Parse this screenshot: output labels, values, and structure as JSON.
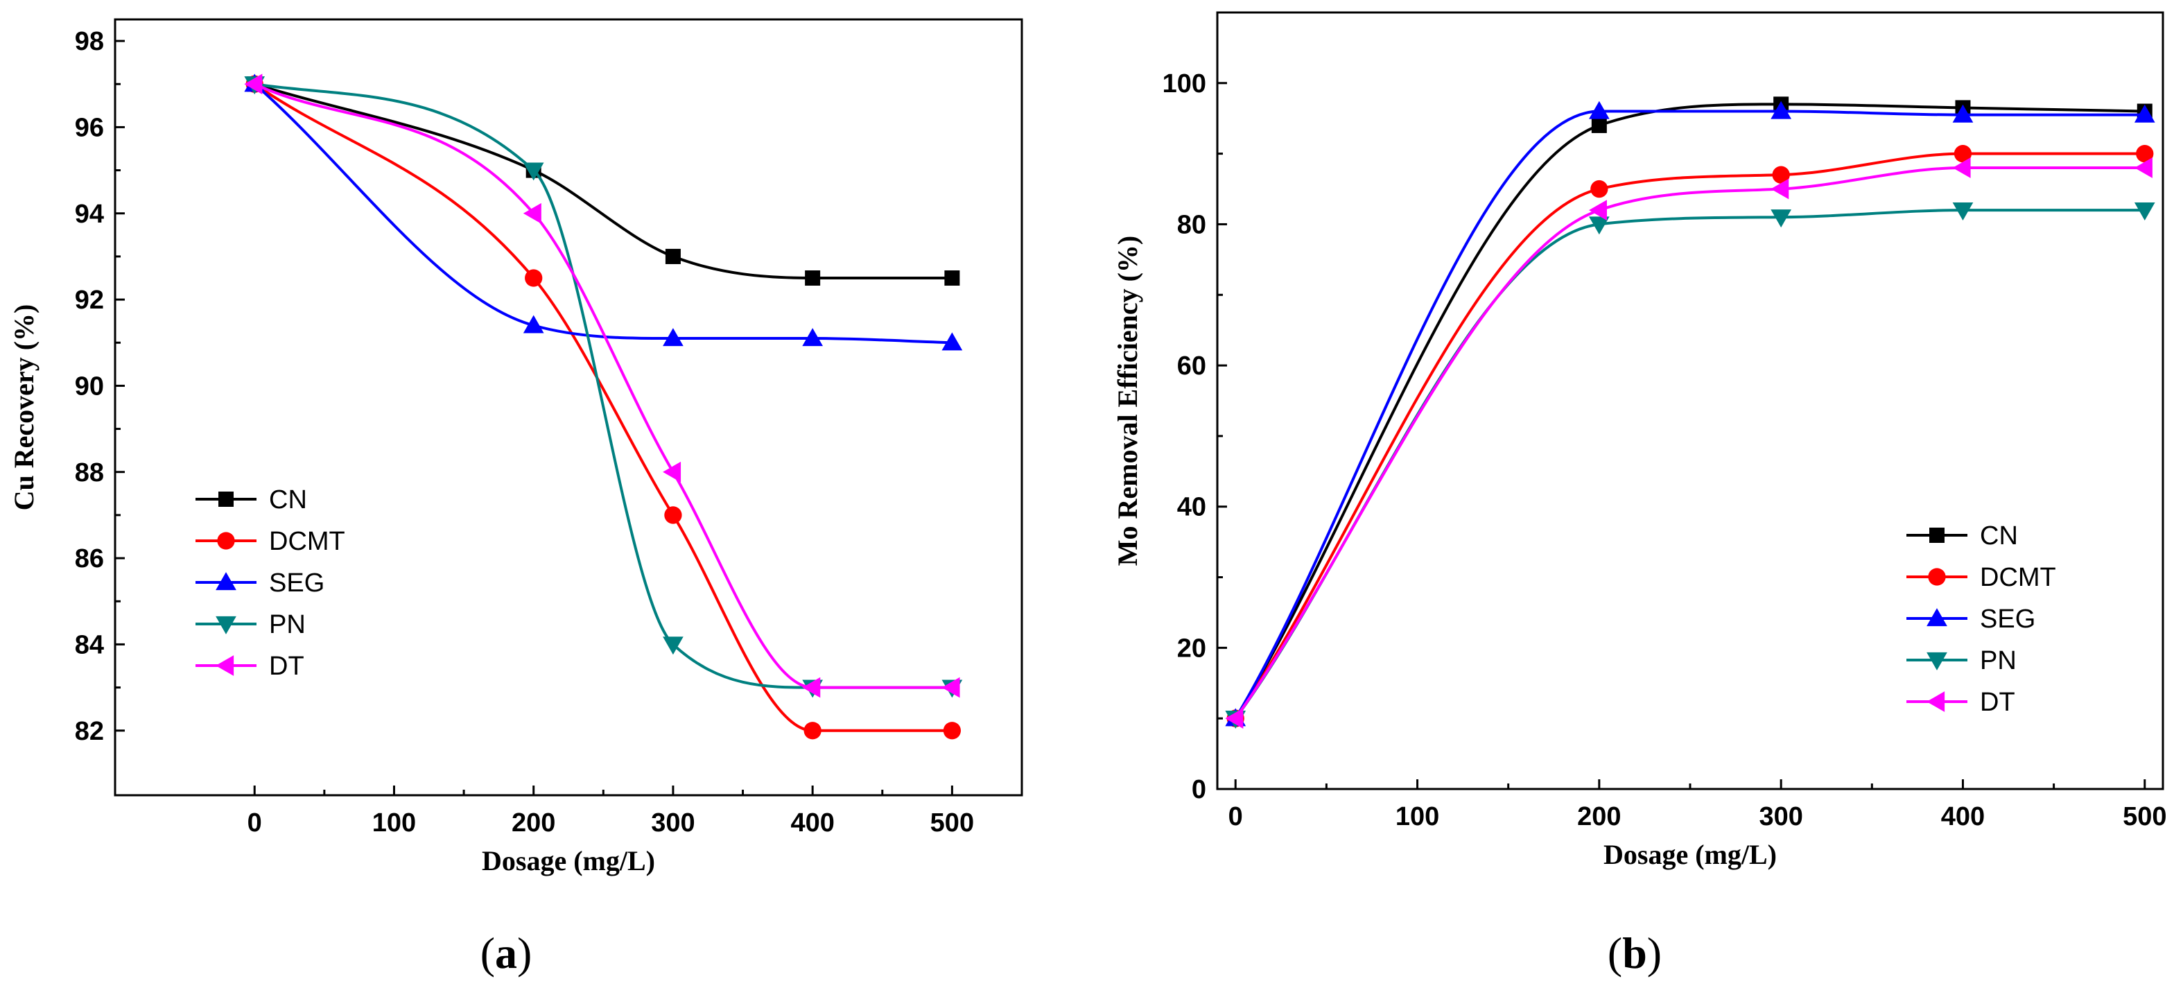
{
  "chart_data": [
    {
      "type": "line",
      "panel_label": {
        "open": "(",
        "letter": "a",
        "close": ")"
      },
      "xlabel": "Dosage (mg/L)",
      "ylabel": "Cu Recovery (%)",
      "xlim": [
        -100,
        550
      ],
      "ylim": [
        80.5,
        98.5
      ],
      "xticks": [
        0,
        100,
        200,
        300,
        400,
        500
      ],
      "yticks": [
        82,
        84,
        86,
        88,
        90,
        92,
        94,
        96,
        98
      ],
      "grid": false,
      "legend_position": "bottom-left",
      "x": [
        0,
        200,
        300,
        400,
        500
      ],
      "series": [
        {
          "name": "CN",
          "color": "#000000",
          "marker": "square",
          "values": [
            97,
            95,
            93,
            92.5,
            92.5
          ]
        },
        {
          "name": "DCMT",
          "color": "#ff0000",
          "marker": "circle",
          "values": [
            97,
            92.5,
            87,
            82,
            82
          ]
        },
        {
          "name": "SEG",
          "color": "#0000ff",
          "marker": "triangle-up",
          "values": [
            97,
            91.4,
            91.1,
            91.1,
            91
          ]
        },
        {
          "name": "PN",
          "color": "#008080",
          "marker": "triangle-down",
          "values": [
            97,
            95,
            84,
            83,
            83
          ]
        },
        {
          "name": "DT",
          "color": "#ff00ff",
          "marker": "triangle-left",
          "values": [
            97,
            94,
            88,
            83,
            83
          ]
        }
      ]
    },
    {
      "type": "line",
      "panel_label": {
        "open": "(",
        "letter": "b",
        "close": ")"
      },
      "xlabel": "Dosage (mg/L)",
      "ylabel": "Mo Removal Efficiency (%)",
      "xlim": [
        -10,
        510
      ],
      "ylim": [
        0,
        110
      ],
      "xticks": [
        0,
        100,
        200,
        300,
        400,
        500
      ],
      "yticks": [
        0,
        20,
        40,
        60,
        80,
        100
      ],
      "grid": false,
      "legend_position": "bottom-right",
      "x": [
        0,
        200,
        300,
        400,
        500
      ],
      "series": [
        {
          "name": "CN",
          "color": "#000000",
          "marker": "square",
          "values": [
            10,
            94,
            97,
            96.5,
            96
          ]
        },
        {
          "name": "DCMT",
          "color": "#ff0000",
          "marker": "circle",
          "values": [
            10,
            85,
            87,
            90,
            90
          ]
        },
        {
          "name": "SEG",
          "color": "#0000ff",
          "marker": "triangle-up",
          "values": [
            10,
            96,
            96,
            95.5,
            95.5
          ]
        },
        {
          "name": "PN",
          "color": "#008080",
          "marker": "triangle-down",
          "values": [
            10,
            80,
            81,
            82,
            82
          ]
        },
        {
          "name": "DT",
          "color": "#ff00ff",
          "marker": "triangle-left",
          "values": [
            10,
            82,
            85,
            88,
            88
          ]
        }
      ]
    }
  ]
}
